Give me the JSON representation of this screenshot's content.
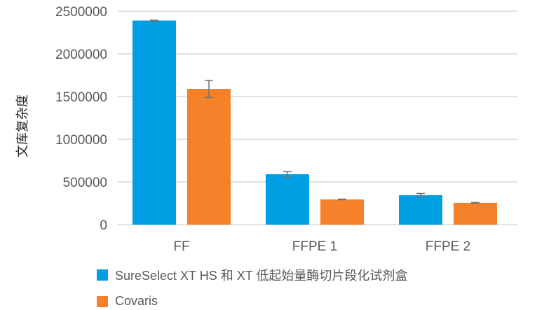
{
  "chart_data": {
    "type": "bar",
    "title": "",
    "xlabel": "",
    "ylabel": "文库复杂度",
    "ylim": [
      0,
      2500000
    ],
    "yticks": [
      0,
      500000,
      1000000,
      1500000,
      2000000,
      2500000
    ],
    "ytick_labels": [
      "0",
      "500000",
      "1000000",
      "1500000",
      "2000000",
      "2500000"
    ],
    "grid": true,
    "legend_position": "bottom",
    "categories": [
      "FF",
      "FFPE 1",
      "FFPE 2"
    ],
    "series": [
      {
        "name": "SureSelect XT HS 和 XT 低起始量酶切片段化试剂盒",
        "color": "#009fe3",
        "values": [
          2390000,
          590000,
          345000
        ],
        "error": [
          5000,
          30000,
          20000
        ]
      },
      {
        "name": "Covaris",
        "color": "#f5822b",
        "values": [
          1590000,
          295000,
          255000
        ],
        "error": [
          100000,
          4000,
          4000
        ]
      }
    ]
  },
  "legend": {
    "items": [
      {
        "label": "SureSelect XT HS 和 XT 低起始量酶切片段化试剂盒",
        "color": "#009fe3"
      },
      {
        "label": "Covaris",
        "color": "#f5822b"
      }
    ]
  }
}
